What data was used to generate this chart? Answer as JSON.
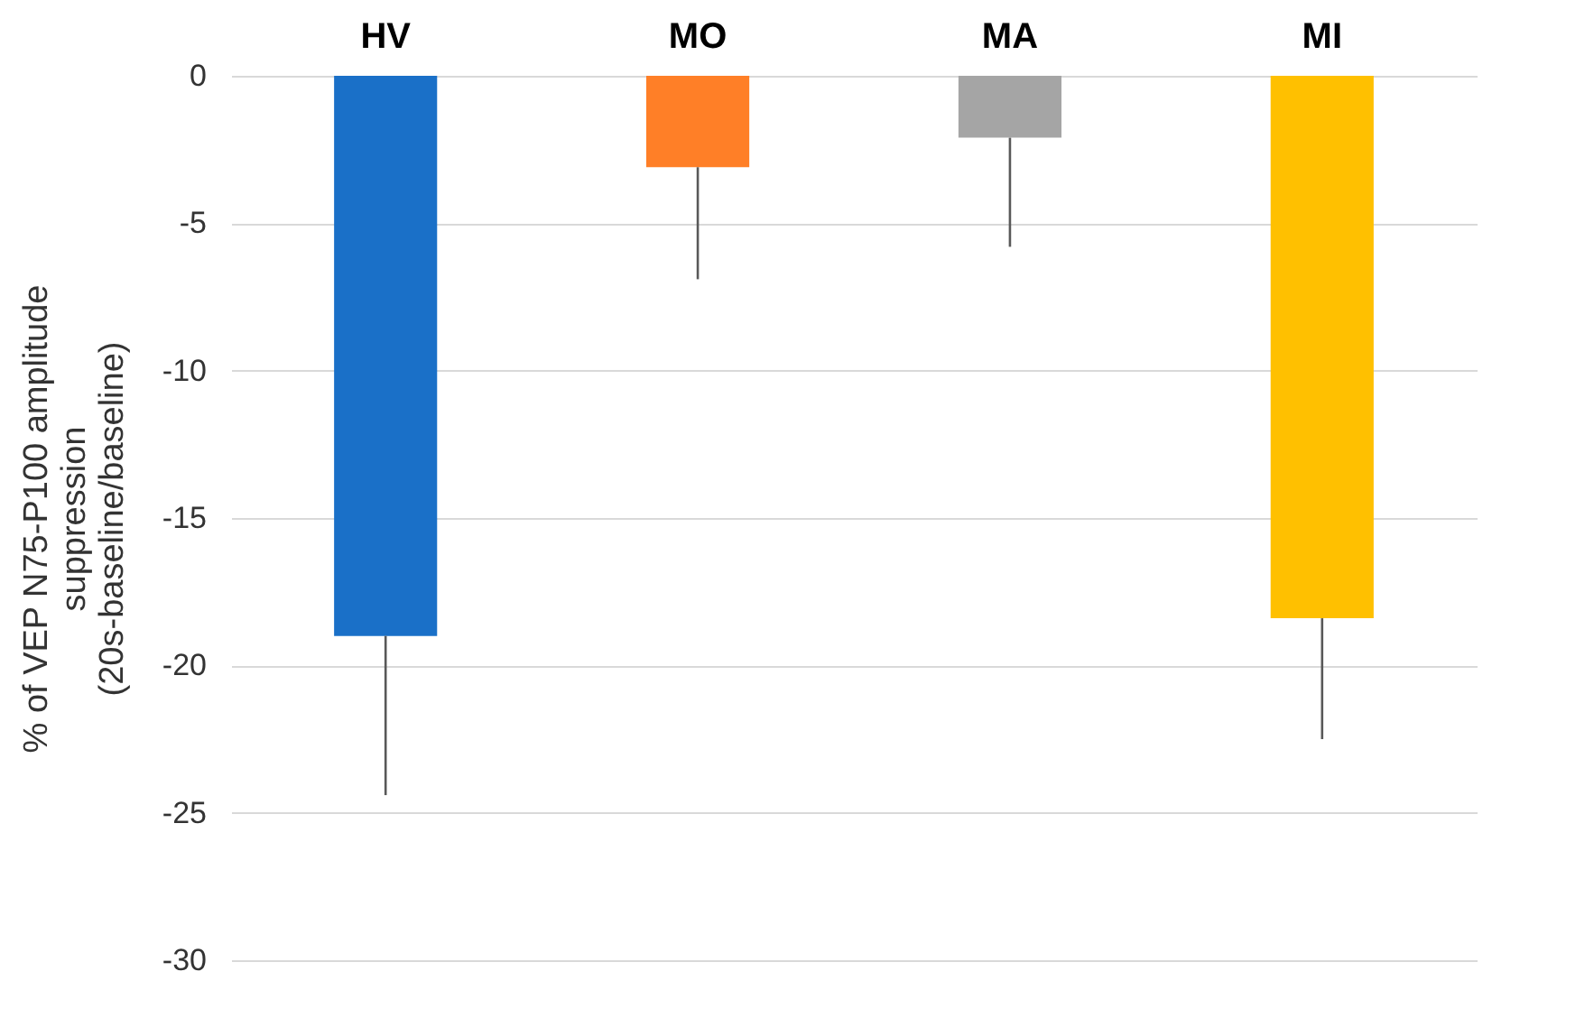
{
  "chart_data": {
    "type": "bar",
    "ylabel": "% of VEP N75-P100 amplitude\nsuppression\n(20s-baseline/baseline)",
    "categories": [
      "HV",
      "MO",
      "MA",
      "MI"
    ],
    "values": [
      -19.0,
      -3.1,
      -2.1,
      -18.4
    ],
    "colors": [
      "#1a70c8",
      "#ff7f27",
      "#a5a5a5",
      "#ffc000"
    ],
    "errors": [
      [
        -24.4,
        -19.0
      ],
      [
        -6.9,
        -3.1
      ],
      [
        -5.8,
        -2.1
      ],
      [
        -22.5,
        -18.4
      ]
    ],
    "ylim": [
      -30,
      0
    ],
    "yticks": [
      -30,
      -25,
      -20,
      -15,
      -10,
      -5,
      0
    ],
    "grid": "y"
  }
}
